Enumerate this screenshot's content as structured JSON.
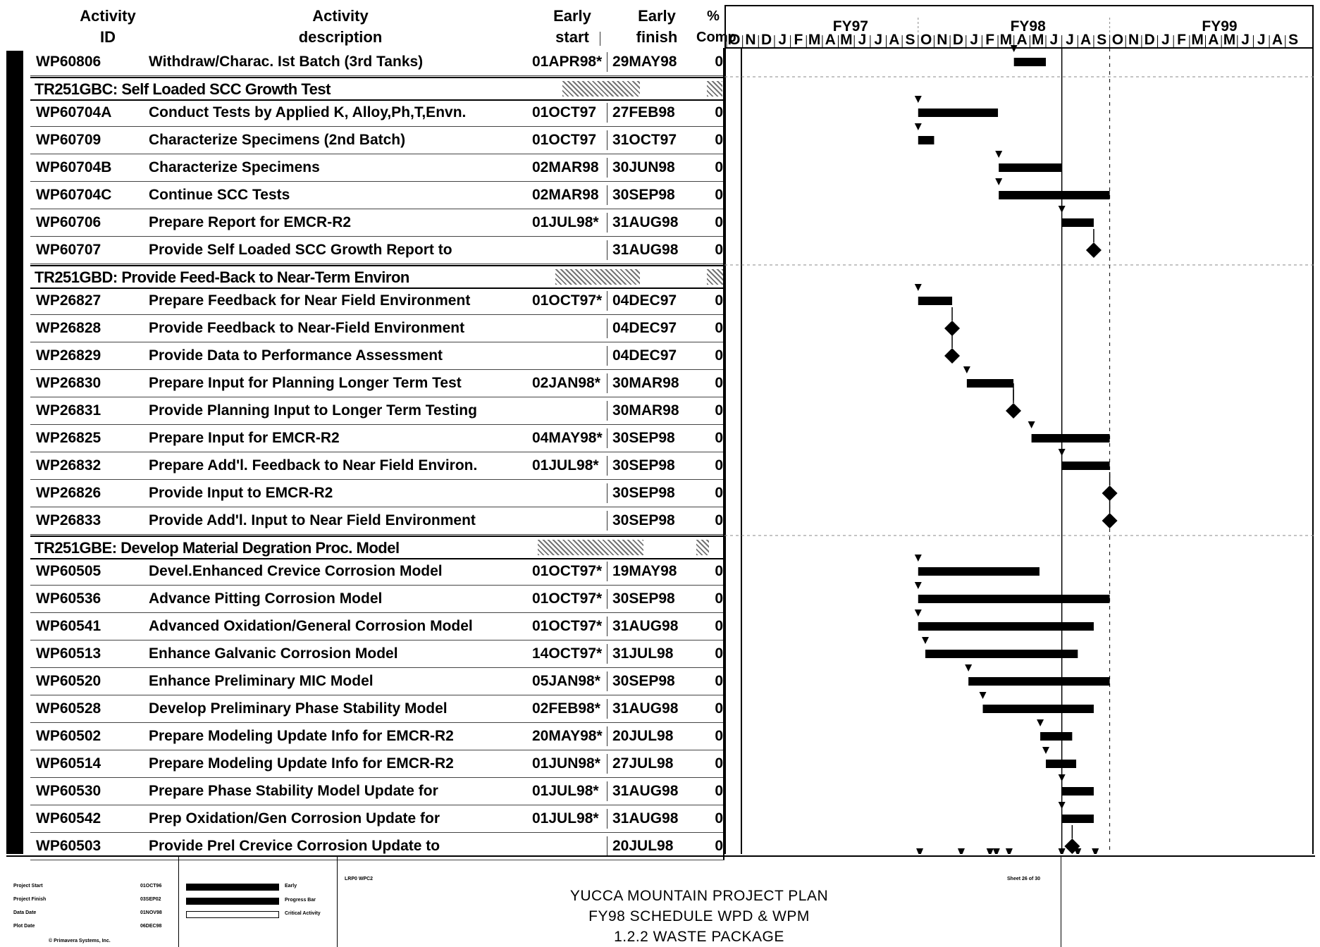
{
  "header": {
    "activity_id": [
      "Activity",
      "ID"
    ],
    "activity_description": [
      "Activity",
      "description"
    ],
    "early_start": [
      "Early",
      "start"
    ],
    "early_finish": [
      "Early",
      "finish"
    ],
    "pct_comp": [
      "%",
      "Comp"
    ]
  },
  "timeline": {
    "fiscal_years": [
      "FY97",
      "FY98",
      "FY99"
    ],
    "months": [
      "O",
      "N",
      "D",
      "J",
      "F",
      "M",
      "A",
      "M",
      "J",
      "J",
      "A",
      "S",
      "O",
      "N",
      "D",
      "J",
      "F",
      "M",
      "A",
      "M",
      "J",
      "J",
      "A",
      "S",
      "O",
      "N",
      "D",
      "J",
      "F",
      "M",
      "A",
      "M",
      "J",
      "J",
      "A",
      "S"
    ]
  },
  "first_row": {
    "id": "WP60806",
    "desc": "Withdraw/Charac. Ist Batch (3rd Tanks)",
    "es": "01APR98*",
    "ef": "29MAY98",
    "pct": "0"
  },
  "groups": [
    {
      "label": "TR251GBC: Self Loaded SCC Growth Test",
      "rows": [
        {
          "id": "WP60704A",
          "desc": "Conduct Tests by Applied K, Alloy,Ph,T,Envn.",
          "es": "01OCT97",
          "ef": "27FEB98",
          "pct": "0"
        },
        {
          "id": "WP60709",
          "desc": "Characterize Specimens (2nd Batch)",
          "es": "01OCT97",
          "ef": "31OCT97",
          "pct": "0"
        },
        {
          "id": "WP60704B",
          "desc": "Characterize Specimens",
          "es": "02MAR98",
          "ef": "30JUN98",
          "pct": "0"
        },
        {
          "id": "WP60704C",
          "desc": "Continue SCC Tests",
          "es": "02MAR98",
          "ef": "30SEP98",
          "pct": "0"
        },
        {
          "id": "WP60706",
          "desc": "Prepare Report for EMCR-R2",
          "es": "01JUL98*",
          "ef": "31AUG98",
          "pct": "0"
        },
        {
          "id": "WP60707",
          "desc": "Provide Self Loaded SCC Growth Report to",
          "es": "",
          "ef": "31AUG98",
          "pct": "0"
        }
      ]
    },
    {
      "label": "TR251GBD: Provide Feed-Back to Near-Term Environ",
      "rows": [
        {
          "id": "WP26827",
          "desc": "Prepare Feedback for Near Field Environment",
          "es": "01OCT97*",
          "ef": "04DEC97",
          "pct": "0"
        },
        {
          "id": "WP26828",
          "desc": "Provide Feedback to Near-Field Environment",
          "es": "",
          "ef": "04DEC97",
          "pct": "0"
        },
        {
          "id": "WP26829",
          "desc": "Provide Data to Performance Assessment",
          "es": "",
          "ef": "04DEC97",
          "pct": "0"
        },
        {
          "id": "WP26830",
          "desc": "Prepare Input for Planning Longer Term Test",
          "es": "02JAN98*",
          "ef": "30MAR98",
          "pct": "0"
        },
        {
          "id": "WP26831",
          "desc": "Provide Planning Input to Longer Term Testing",
          "es": "",
          "ef": "30MAR98",
          "pct": "0"
        },
        {
          "id": "WP26825",
          "desc": "Prepare Input for EMCR-R2",
          "es": "04MAY98*",
          "ef": "30SEP98",
          "pct": "0"
        },
        {
          "id": "WP26832",
          "desc": "Prepare Add'l. Feedback to Near Field Environ.",
          "es": "01JUL98*",
          "ef": "30SEP98",
          "pct": "0"
        },
        {
          "id": "WP26826",
          "desc": "Provide Input to EMCR-R2",
          "es": "",
          "ef": "30SEP98",
          "pct": "0"
        },
        {
          "id": "WP26833",
          "desc": "Provide Add'l. Input to Near Field Environment",
          "es": "",
          "ef": "30SEP98",
          "pct": "0"
        }
      ]
    },
    {
      "label": "TR251GBE: Develop Material Degration Proc. Model",
      "rows": [
        {
          "id": "WP60505",
          "desc": "Devel.Enhanced Crevice Corrosion Model",
          "es": "01OCT97*",
          "ef": "19MAY98",
          "pct": "0"
        },
        {
          "id": "WP60536",
          "desc": "Advance Pitting Corrosion Model",
          "es": "01OCT97*",
          "ef": "30SEP98",
          "pct": "0"
        },
        {
          "id": "WP60541",
          "desc": "Advanced Oxidation/General Corrosion Model",
          "es": "01OCT97*",
          "ef": "31AUG98",
          "pct": "0"
        },
        {
          "id": "WP60513",
          "desc": "Enhance Galvanic Corrosion Model",
          "es": "14OCT97*",
          "ef": "31JUL98",
          "pct": "0"
        },
        {
          "id": "WP60520",
          "desc": "Enhance Preliminary MIC Model",
          "es": "05JAN98*",
          "ef": "30SEP98",
          "pct": "0"
        },
        {
          "id": "WP60528",
          "desc": "Develop Preliminary Phase Stability Model",
          "es": "02FEB98*",
          "ef": "31AUG98",
          "pct": "0"
        },
        {
          "id": "WP60502",
          "desc": "Prepare Modeling Update Info for EMCR-R2",
          "es": "20MAY98*",
          "ef": "20JUL98",
          "pct": "0"
        },
        {
          "id": "WP60514",
          "desc": "Prepare Modeling Update Info for EMCR-R2",
          "es": "01JUN98*",
          "ef": "27JUL98",
          "pct": "0"
        },
        {
          "id": "WP60530",
          "desc": "Prepare Phase Stability Model Update for",
          "es": "01JUL98*",
          "ef": "31AUG98",
          "pct": "0"
        },
        {
          "id": "WP60542",
          "desc": "Prep Oxidation/Gen Corrosion Update for",
          "es": "01JUL98*",
          "ef": "31AUG98",
          "pct": "0"
        },
        {
          "id": "WP60503",
          "desc": "Provide Prel Crevice Corrosion Update to",
          "es": "",
          "ef": "20JUL98",
          "pct": "0"
        }
      ]
    }
  ],
  "gantt_bars": [
    {
      "row": 0,
      "start": 18.0,
      "end": 20.0,
      "type": "bar"
    },
    {
      "row": 2,
      "start": 12.0,
      "end": 17.0,
      "type": "bar"
    },
    {
      "row": 3,
      "start": 12.0,
      "end": 13.0,
      "type": "bar"
    },
    {
      "row": 4,
      "start": 17.05,
      "end": 21.0,
      "type": "bar"
    },
    {
      "row": 5,
      "start": 17.05,
      "end": 24.0,
      "type": "bar"
    },
    {
      "row": 6,
      "start": 21.0,
      "end": 23.0,
      "type": "bar"
    },
    {
      "row": 7,
      "start": 23.0,
      "end": 23.0,
      "type": "milestone"
    },
    {
      "row": 9,
      "start": 12.0,
      "end": 14.13,
      "type": "bar"
    },
    {
      "row": 10,
      "start": 14.13,
      "end": 14.13,
      "type": "milestone"
    },
    {
      "row": 11,
      "start": 14.13,
      "end": 14.13,
      "type": "milestone"
    },
    {
      "row": 12,
      "start": 15.05,
      "end": 17.97,
      "type": "milestone-bar"
    },
    {
      "row": 13,
      "start": 17.97,
      "end": 17.97,
      "type": "milestone"
    },
    {
      "row": 14,
      "start": 19.1,
      "end": 24.0,
      "type": "bar"
    },
    {
      "row": 15,
      "start": 21.0,
      "end": 24.0,
      "type": "bar"
    },
    {
      "row": 16,
      "start": 24.0,
      "end": 24.0,
      "type": "milestone"
    },
    {
      "row": 17,
      "start": 24.0,
      "end": 24.0,
      "type": "milestone"
    },
    {
      "row": 19,
      "start": 12.0,
      "end": 19.6,
      "type": "bar"
    },
    {
      "row": 20,
      "start": 12.0,
      "end": 24.0,
      "type": "bar"
    },
    {
      "row": 21,
      "start": 12.0,
      "end": 23.0,
      "type": "bar"
    },
    {
      "row": 22,
      "start": 12.45,
      "end": 22.0,
      "type": "bar"
    },
    {
      "row": 23,
      "start": 15.15,
      "end": 24.0,
      "type": "bar"
    },
    {
      "row": 24,
      "start": 16.05,
      "end": 23.0,
      "type": "bar"
    },
    {
      "row": 25,
      "start": 19.65,
      "end": 21.65,
      "type": "bar"
    },
    {
      "row": 26,
      "start": 20.0,
      "end": 21.9,
      "type": "bar"
    },
    {
      "row": 27,
      "start": 21.0,
      "end": 23.0,
      "type": "bar"
    },
    {
      "row": 28,
      "start": 21.0,
      "end": 23.0,
      "type": "bar"
    },
    {
      "row": 29,
      "start": 21.65,
      "end": 21.65,
      "type": "milestone"
    }
  ],
  "footer": {
    "legend_labels": [
      "Project Start",
      "Project Finish",
      "Data Date",
      "Plot Date"
    ],
    "legend_values": [
      "01OCT96",
      "03SEP02",
      "01NOV98",
      "06DEC98"
    ],
    "legend_bars": [
      "Early",
      "Progress Bar",
      "Critical Activity"
    ],
    "copyright": "© Primavera Systems, Inc.",
    "code": "LRP0 WPC2",
    "sheet": "Sheet 26 of 30",
    "title_lines": [
      "YUCCA MOUNTAIN PROJECT PLAN",
      "FY98 SCHEDULE WPD & WPM",
      "1.2.2 WASTE PACKAGE"
    ]
  }
}
